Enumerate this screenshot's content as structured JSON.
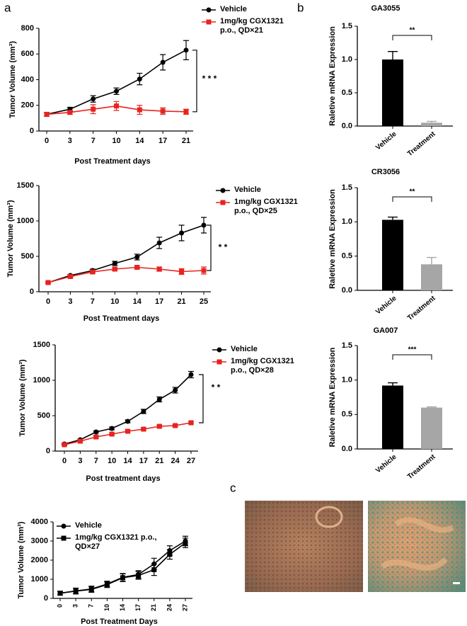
{
  "panel_labels": [
    "a",
    "b",
    "c"
  ],
  "chart_data": [
    {
      "type": "line",
      "categories": [
        "0",
        "3",
        "7",
        "10",
        "14",
        "17",
        "21"
      ],
      "xlabel": "Post Treatment days",
      "ylabel": "Tumor Volume (mm³)",
      "ylim": [
        0,
        800
      ],
      "yticks": [
        0,
        200,
        400,
        600,
        800
      ],
      "annotation": "* * *",
      "series": [
        {
          "name": "Vehicle",
          "color": "#000000",
          "marker": "circle",
          "values": [
            130,
            170,
            250,
            310,
            405,
            535,
            630
          ],
          "errors": [
            15,
            15,
            25,
            25,
            45,
            60,
            75
          ]
        },
        {
          "name": "1mg/kg CGX1321\n p.o., QD×21",
          "color": "#e8231f",
          "marker": "square",
          "values": [
            130,
            145,
            170,
            195,
            165,
            155,
            150
          ],
          "errors": [
            15,
            15,
            35,
            35,
            35,
            25,
            20
          ]
        }
      ]
    },
    {
      "type": "line",
      "categories": [
        "0",
        "3",
        "7",
        "10",
        "14",
        "17",
        "21",
        "25"
      ],
      "xlabel": "Post Treatment days",
      "ylabel": "Tumor Volume (mm³)",
      "ylim": [
        0,
        1500
      ],
      "yticks": [
        0,
        500,
        1000,
        1500
      ],
      "annotation": "* *",
      "series": [
        {
          "name": "Vehicle",
          "color": "#000000",
          "marker": "circle",
          "values": [
            130,
            230,
            300,
            400,
            490,
            690,
            830,
            940
          ],
          "errors": [
            10,
            15,
            20,
            30,
            40,
            80,
            110,
            110
          ]
        },
        {
          "name": "1mg/kg CGX1321\n p.o., QD×25",
          "color": "#e8231f",
          "marker": "square",
          "values": [
            130,
            215,
            280,
            320,
            345,
            320,
            285,
            300
          ],
          "errors": [
            10,
            15,
            20,
            20,
            20,
            30,
            40,
            50
          ]
        }
      ]
    },
    {
      "type": "line",
      "categories": [
        "0",
        "3",
        "7",
        "10",
        "14",
        "17",
        "21",
        "24",
        "27"
      ],
      "xlabel": "Post treatment days",
      "ylabel": "Tumor Volume (mm³)",
      "ylim": [
        0,
        1500
      ],
      "yticks": [
        0,
        500,
        1000,
        1500
      ],
      "annotation": "* *",
      "series": [
        {
          "name": "Vehicle",
          "color": "#000000",
          "marker": "circle",
          "values": [
            100,
            160,
            270,
            320,
            420,
            560,
            730,
            860,
            1080
          ],
          "errors": [
            10,
            10,
            15,
            20,
            20,
            30,
            35,
            40,
            45
          ]
        },
        {
          "name": "1mg/kg CGX1321\n p.o., QD×28",
          "color": "#e8231f",
          "marker": "square",
          "values": [
            90,
            140,
            200,
            240,
            280,
            310,
            350,
            360,
            400
          ],
          "errors": [
            10,
            10,
            15,
            15,
            15,
            15,
            15,
            15,
            15
          ]
        }
      ]
    },
    {
      "type": "line",
      "categories": [
        "0",
        "3",
        "7",
        "10",
        "14",
        "17",
        "21",
        "24",
        "27"
      ],
      "xlabel": "Post Treatment Days",
      "ylabel": "Tumor Volume (mm³)",
      "ylim": [
        0,
        4000
      ],
      "yticks": [
        0,
        1000,
        2000,
        3000,
        4000
      ],
      "series": [
        {
          "name": "Vehicle",
          "color": "#000000",
          "marker": "circle",
          "values": [
            270,
            390,
            490,
            750,
            1100,
            1250,
            1800,
            2500,
            3000
          ],
          "errors": [
            100,
            150,
            150,
            150,
            200,
            200,
            300,
            250,
            250
          ]
        },
        {
          "name": "1mg/kg CGX1321 p.o.,\nQD×27",
          "color": "#000000",
          "marker": "square",
          "values": [
            270,
            380,
            470,
            720,
            1080,
            1200,
            1500,
            2300,
            2900
          ],
          "errors": [
            100,
            150,
            150,
            150,
            200,
            200,
            300,
            250,
            250
          ]
        }
      ]
    },
    {
      "type": "bar",
      "title": "GA3055",
      "categories": [
        "Vehicle",
        "Treatment"
      ],
      "values": [
        1.0,
        0.05
      ],
      "errors": [
        0.12,
        0.02
      ],
      "colors": [
        "#000000",
        "#a6a6a6"
      ],
      "ylabel": "Raletive mRNA Expression",
      "ylim": [
        0,
        1.5
      ],
      "yticks": [
        {
          "value": 0,
          "label": "0.0"
        },
        0.5,
        {
          "value": 1,
          "label": "1.0"
        },
        1.5
      ],
      "annotation": "**"
    },
    {
      "type": "bar",
      "title": "CR3056",
      "categories": [
        "Vehicle",
        "Treatment"
      ],
      "values": [
        1.03,
        0.38
      ],
      "errors": [
        0.04,
        0.1
      ],
      "colors": [
        "#000000",
        "#a6a6a6"
      ],
      "ylabel": "Raletive mRNA Expression",
      "ylim": [
        0,
        1.5
      ],
      "yticks": [
        {
          "value": 0,
          "label": "0.0"
        },
        0.5,
        {
          "value": 1,
          "label": "1.0"
        },
        1.5
      ],
      "annotation": "**"
    },
    {
      "type": "bar",
      "title": "GA007",
      "categories": [
        "Vehicle",
        "Treatment"
      ],
      "values": [
        0.92,
        0.6
      ],
      "errors": [
        0.04,
        0.01
      ],
      "colors": [
        "#000000",
        "#a6a6a6"
      ],
      "ylabel": "Raletive mRNA Expression",
      "ylim": [
        0,
        1.5
      ],
      "yticks": [
        {
          "value": 0,
          "label": "0.0"
        },
        0.5,
        {
          "value": 1,
          "label": "1.0"
        },
        1.5
      ],
      "annotation": "***"
    }
  ]
}
